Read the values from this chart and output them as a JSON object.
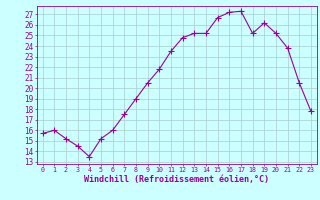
{
  "x": [
    0,
    1,
    2,
    3,
    4,
    5,
    6,
    7,
    8,
    9,
    10,
    11,
    12,
    13,
    14,
    15,
    16,
    17,
    18,
    19,
    20,
    21,
    22,
    23
  ],
  "y": [
    15.7,
    16.0,
    15.2,
    14.5,
    13.5,
    15.2,
    16.0,
    17.5,
    19.0,
    20.5,
    21.8,
    23.5,
    24.8,
    25.2,
    25.2,
    26.7,
    27.2,
    27.3,
    25.2,
    26.2,
    25.2,
    23.8,
    20.5,
    17.8
  ],
  "line_color": "#990099",
  "marker": "+",
  "marker_size": 4,
  "bg_color": "#ccffff",
  "grid_color": "#aacccc",
  "xlabel": "Windchill (Refroidissement éolien,°C)",
  "xlabel_fontsize": 6.0,
  "ylabel_ticks": [
    13,
    14,
    15,
    16,
    17,
    18,
    19,
    20,
    21,
    22,
    23,
    24,
    25,
    26,
    27
  ],
  "ytick_fontsize": 5.5,
  "xtick_fontsize": 4.8,
  "ylim": [
    12.8,
    27.8
  ],
  "xlim": [
    -0.5,
    23.5
  ]
}
